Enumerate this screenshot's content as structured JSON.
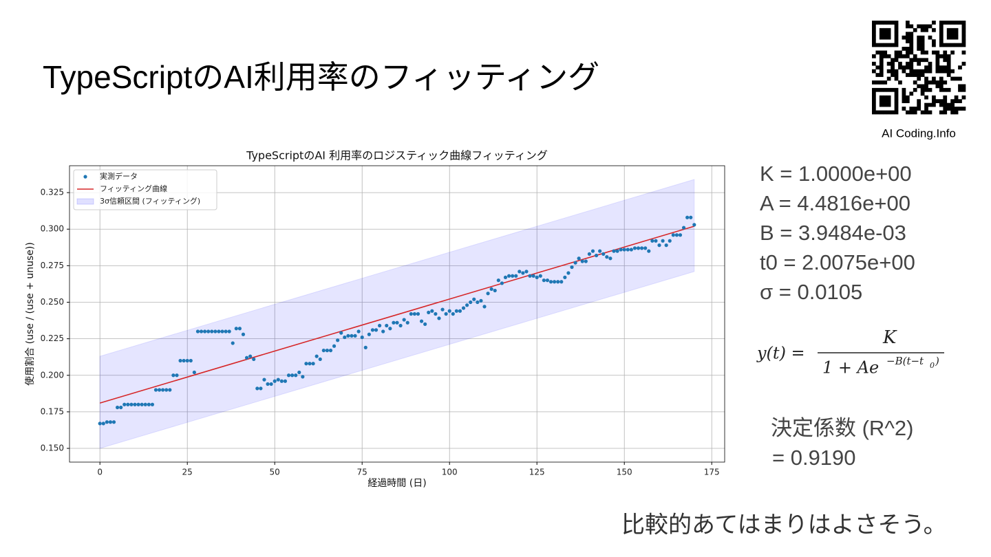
{
  "header": {
    "title": "TypeScriptのAI利用率のフィッティング",
    "site": "AI Coding.Info"
  },
  "params": [
    "K = 1.0000e+00",
    "A = 4.4816e+00",
    "B = 3.9484e-03",
    "t0 = 2.0075e+00",
    "σ  = 0.0105"
  ],
  "formula": {
    "lhs": "y(t) =",
    "numerator": "K",
    "denominator": "1 + Ae",
    "exponent": "−B(t−t",
    "subscript": "0",
    "close": ")"
  },
  "r2": {
    "label": "決定係数 (R^2)",
    "value": " = 0.9190"
  },
  "comment": "比較的あてはまりはよさそう。",
  "chart_data": {
    "type": "scatter",
    "title": "TypeScriptのAI 利用率のロジスティック曲線フィッティング",
    "xlabel": "経過時間 (日)",
    "ylabel": "使用割合 (use / (use + unuse))",
    "xlim": [
      -8.7,
      178.7
    ],
    "ylim": [
      0.1406,
      0.3434
    ],
    "xticks": [
      0,
      25,
      50,
      75,
      100,
      125,
      150,
      175
    ],
    "yticks": [
      {
        "value": 0.15,
        "label": "0.150"
      },
      {
        "value": 0.175,
        "label": "0.175"
      },
      {
        "value": 0.2,
        "label": "0.200"
      },
      {
        "value": 0.225,
        "label": "0.225"
      },
      {
        "value": 0.25,
        "label": "0.250"
      },
      {
        "value": 0.275,
        "label": "0.275"
      },
      {
        "value": 0.3,
        "label": "0.300"
      },
      {
        "value": 0.325,
        "label": "0.325"
      }
    ],
    "grid": true,
    "legend": "upper left",
    "series": [
      {
        "name": "実測データ",
        "type": "scatter",
        "color": "#1f77b4",
        "x": [
          0,
          1,
          2,
          3,
          4,
          5,
          6,
          7,
          8,
          9,
          10,
          11,
          12,
          13,
          14,
          15,
          16,
          17,
          18,
          19,
          20,
          21,
          22,
          23,
          24,
          25,
          26,
          27,
          28,
          29,
          30,
          31,
          32,
          33,
          34,
          35,
          36,
          37,
          38,
          39,
          40,
          41,
          42,
          43,
          44,
          45,
          46,
          47,
          48,
          49,
          50,
          51,
          52,
          53,
          54,
          55,
          56,
          57,
          58,
          59,
          60,
          61,
          62,
          63,
          64,
          65,
          66,
          67,
          68,
          69,
          70,
          71,
          72,
          73,
          74,
          75,
          76,
          77,
          78,
          79,
          80,
          81,
          82,
          83,
          84,
          85,
          86,
          87,
          88,
          89,
          90,
          91,
          92,
          93,
          94,
          95,
          96,
          97,
          98,
          99,
          100,
          101,
          102,
          103,
          104,
          105,
          106,
          107,
          108,
          109,
          110,
          111,
          112,
          113,
          114,
          115,
          116,
          117,
          118,
          119,
          120,
          121,
          122,
          123,
          124,
          125,
          126,
          127,
          128,
          129,
          130,
          131,
          132,
          133,
          134,
          135,
          136,
          137,
          138,
          139,
          140,
          141,
          142,
          143,
          144,
          145,
          146,
          147,
          148,
          149,
          150,
          151,
          152,
          153,
          154,
          155,
          156,
          157,
          158,
          159,
          160,
          161,
          162,
          163,
          164,
          165,
          166,
          167,
          168,
          169,
          170
        ],
        "values": [
          0.167,
          0.167,
          0.168,
          0.168,
          0.168,
          0.178,
          0.178,
          0.18,
          0.18,
          0.18,
          0.18,
          0.18,
          0.18,
          0.18,
          0.18,
          0.18,
          0.19,
          0.19,
          0.19,
          0.19,
          0.19,
          0.2,
          0.2,
          0.21,
          0.21,
          0.21,
          0.21,
          0.202,
          0.23,
          0.23,
          0.23,
          0.23,
          0.23,
          0.23,
          0.23,
          0.23,
          0.23,
          0.23,
          0.222,
          0.232,
          0.232,
          0.228,
          0.212,
          0.213,
          0.211,
          0.191,
          0.191,
          0.197,
          0.194,
          0.194,
          0.196,
          0.197,
          0.196,
          0.196,
          0.2,
          0.2,
          0.2,
          0.202,
          0.199,
          0.208,
          0.208,
          0.208,
          0.213,
          0.211,
          0.217,
          0.217,
          0.217,
          0.22,
          0.224,
          0.229,
          0.226,
          0.227,
          0.227,
          0.227,
          0.23,
          0.226,
          0.219,
          0.228,
          0.231,
          0.231,
          0.234,
          0.23,
          0.234,
          0.232,
          0.236,
          0.236,
          0.234,
          0.238,
          0.236,
          0.242,
          0.242,
          0.242,
          0.237,
          0.235,
          0.243,
          0.244,
          0.242,
          0.239,
          0.245,
          0.242,
          0.244,
          0.242,
          0.244,
          0.244,
          0.246,
          0.248,
          0.25,
          0.252,
          0.25,
          0.251,
          0.247,
          0.256,
          0.259,
          0.258,
          0.265,
          0.263,
          0.267,
          0.268,
          0.268,
          0.268,
          0.271,
          0.27,
          0.271,
          0.268,
          0.268,
          0.267,
          0.268,
          0.265,
          0.265,
          0.264,
          0.264,
          0.264,
          0.264,
          0.267,
          0.27,
          0.274,
          0.277,
          0.28,
          0.278,
          0.278,
          0.283,
          0.285,
          0.282,
          0.285,
          0.283,
          0.281,
          0.28,
          0.285,
          0.285,
          0.286,
          0.286,
          0.286,
          0.286,
          0.287,
          0.287,
          0.287,
          0.287,
          0.285,
          0.292,
          0.292,
          0.289,
          0.292,
          0.289,
          0.292,
          0.296,
          0.296,
          0.296,
          0.301,
          0.308,
          0.308,
          0.303
        ]
      },
      {
        "name": "フィッティング曲線",
        "type": "line",
        "color": "#d62728",
        "x": [
          0,
          170
        ],
        "values": [
          0.181,
          0.302
        ]
      },
      {
        "name": "3σ信頼区間 (フィッティング)",
        "type": "band",
        "color": "#0000ff",
        "x": [
          0,
          170
        ],
        "upper": [
          0.213,
          0.334
        ],
        "lower": [
          0.15,
          0.271
        ]
      }
    ]
  }
}
